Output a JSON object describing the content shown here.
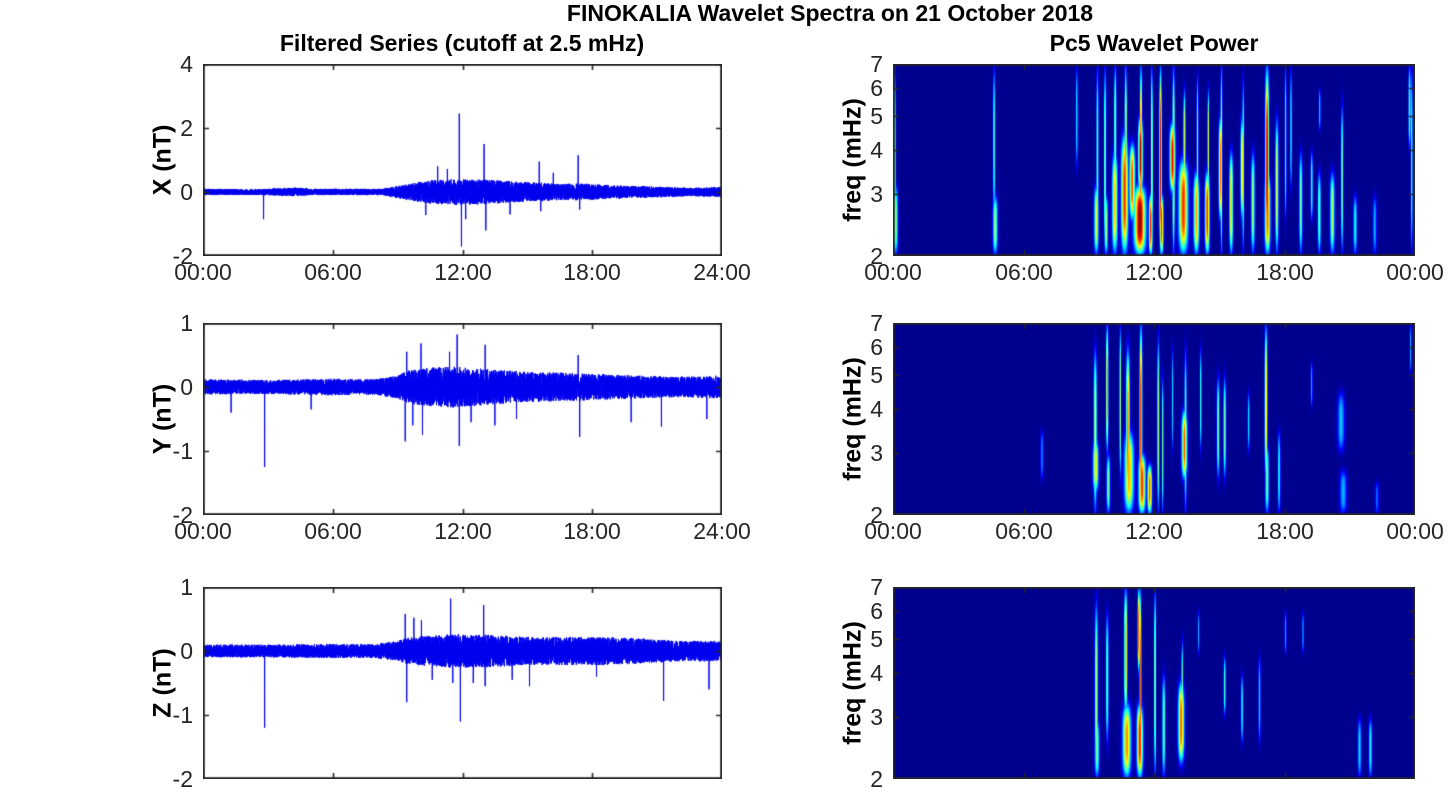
{
  "figure": {
    "suptitle": "FINOKALIA Wavelet Spectra on 21 October 2018",
    "left_title": "Filtered Series (cutoff at 2.5 mHz)",
    "right_title": "Pc5 Wavelet Power",
    "colors": {
      "trace": "#0000EE",
      "axis": "#262626",
      "background": "#FFFFFF",
      "spectrogram_background": "#00008F",
      "colormap": "jet"
    }
  },
  "chart_data": [
    {
      "type": "line",
      "name": "X filtered series",
      "ylabel": "X (nT)",
      "ylim": [
        -2,
        4
      ],
      "yticks": [
        4,
        2,
        0,
        -2
      ],
      "ytick_labels": [
        "4",
        "2",
        "0",
        "-2"
      ],
      "xlim_hours": [
        0,
        24
      ],
      "xticks_hours": [
        0,
        6,
        12,
        18,
        24
      ],
      "xtick_labels": [
        "00:00",
        "06:00",
        "12:00",
        "18:00",
        "24:00"
      ],
      "line_color": "#0000EE",
      "noise_envelope": [
        [
          0,
          0.1
        ],
        [
          2.5,
          0.09
        ],
        [
          4.4,
          0.14
        ],
        [
          5,
          0.1
        ],
        [
          8.3,
          0.1
        ],
        [
          9,
          0.2
        ],
        [
          9.8,
          0.3
        ],
        [
          10.5,
          0.36
        ],
        [
          11.5,
          0.4
        ],
        [
          12.5,
          0.4
        ],
        [
          13.5,
          0.37
        ],
        [
          14.5,
          0.32
        ],
        [
          15.5,
          0.3
        ],
        [
          16.5,
          0.25
        ],
        [
          17.5,
          0.27
        ],
        [
          19,
          0.21
        ],
        [
          21,
          0.17
        ],
        [
          22.5,
          0.13
        ],
        [
          24,
          0.16
        ]
      ],
      "spikes": [
        [
          2.8,
          -0.85
        ],
        [
          10.3,
          -0.72
        ],
        [
          10.85,
          0.8
        ],
        [
          11.3,
          0.72
        ],
        [
          11.85,
          2.45
        ],
        [
          11.95,
          -1.7
        ],
        [
          12.15,
          -0.85
        ],
        [
          13.0,
          1.5
        ],
        [
          13.08,
          -1.2
        ],
        [
          14.2,
          -0.7
        ],
        [
          15.55,
          0.95
        ],
        [
          15.62,
          -0.6
        ],
        [
          16.2,
          0.6
        ],
        [
          17.35,
          1.15
        ],
        [
          17.42,
          -0.55
        ]
      ]
    },
    {
      "type": "line",
      "name": "Y filtered series",
      "ylabel": "Y (nT)",
      "ylim": [
        -2,
        1
      ],
      "yticks": [
        1,
        0,
        -1,
        -2
      ],
      "ytick_labels": [
        "1",
        "0",
        "-1",
        "-2"
      ],
      "xlim_hours": [
        0,
        24
      ],
      "xticks_hours": [
        0,
        6,
        12,
        18,
        24
      ],
      "xtick_labels": [
        "00:00",
        "06:00",
        "12:00",
        "18:00",
        "24:00"
      ],
      "line_color": "#0000EE",
      "noise_envelope": [
        [
          0,
          0.12
        ],
        [
          3,
          0.11
        ],
        [
          6,
          0.13
        ],
        [
          8,
          0.12
        ],
        [
          9,
          0.18
        ],
        [
          9.5,
          0.26
        ],
        [
          10.5,
          0.3
        ],
        [
          11.5,
          0.32
        ],
        [
          12.5,
          0.3
        ],
        [
          13.5,
          0.27
        ],
        [
          15,
          0.24
        ],
        [
          17,
          0.22
        ],
        [
          18.5,
          0.2
        ],
        [
          20,
          0.18
        ],
        [
          22,
          0.16
        ],
        [
          24,
          0.18
        ]
      ],
      "spikes": [
        [
          1.3,
          -0.4
        ],
        [
          2.85,
          -1.25
        ],
        [
          5.0,
          -0.35
        ],
        [
          9.35,
          -0.85
        ],
        [
          9.42,
          0.55
        ],
        [
          9.7,
          -0.6
        ],
        [
          10.08,
          0.68
        ],
        [
          10.15,
          -0.75
        ],
        [
          11.4,
          0.55
        ],
        [
          11.75,
          0.82
        ],
        [
          11.85,
          -0.92
        ],
        [
          12.4,
          -0.55
        ],
        [
          13.05,
          0.66
        ],
        [
          13.5,
          -0.6
        ],
        [
          14.5,
          -0.5
        ],
        [
          17.35,
          0.5
        ],
        [
          17.42,
          -0.78
        ],
        [
          19.8,
          -0.55
        ],
        [
          21.2,
          -0.62
        ],
        [
          23.3,
          -0.5
        ]
      ]
    },
    {
      "type": "line",
      "name": "Z filtered series",
      "ylabel": "Z (nT)",
      "ylim": [
        -2,
        1
      ],
      "yticks": [
        1,
        0,
        -1,
        -2
      ],
      "ytick_labels": [
        "1",
        "0",
        "-1",
        "-2"
      ],
      "xlim_hours": [
        0,
        24
      ],
      "xticks_hours": [
        0,
        6,
        12,
        18,
        24
      ],
      "xtick_labels": [],
      "line_color": "#0000EE",
      "noise_envelope": [
        [
          0,
          0.1
        ],
        [
          3,
          0.1
        ],
        [
          6,
          0.11
        ],
        [
          8,
          0.11
        ],
        [
          9,
          0.16
        ],
        [
          9.5,
          0.21
        ],
        [
          10.5,
          0.24
        ],
        [
          11.5,
          0.26
        ],
        [
          12.5,
          0.26
        ],
        [
          13.5,
          0.25
        ],
        [
          15,
          0.22
        ],
        [
          17,
          0.22
        ],
        [
          18.5,
          0.22
        ],
        [
          20,
          0.2
        ],
        [
          22,
          0.16
        ],
        [
          24,
          0.16
        ]
      ],
      "spikes": [
        [
          2.85,
          -1.2
        ],
        [
          9.35,
          0.58
        ],
        [
          9.42,
          -0.8
        ],
        [
          9.75,
          0.52
        ],
        [
          10.1,
          0.48
        ],
        [
          10.6,
          -0.45
        ],
        [
          11.45,
          0.82
        ],
        [
          11.55,
          -0.5
        ],
        [
          11.9,
          -1.1
        ],
        [
          12.5,
          -0.5
        ],
        [
          12.98,
          0.72
        ],
        [
          13.05,
          -0.55
        ],
        [
          14.3,
          -0.45
        ],
        [
          15.1,
          -0.55
        ],
        [
          18.2,
          -0.4
        ],
        [
          21.3,
          -0.78
        ],
        [
          23.4,
          -0.6
        ]
      ]
    },
    {
      "type": "heatmap",
      "name": "X Pc5 wavelet power",
      "ylabel": "freq (mHz)",
      "yscale": "log",
      "ylim": [
        2,
        7
      ],
      "yticks": [
        7,
        6,
        5,
        4,
        3,
        2
      ],
      "ytick_labels": [
        "7",
        "6",
        "5",
        "4",
        "3",
        "2"
      ],
      "xlim_hours": [
        0,
        24
      ],
      "xticks_hours": [
        0,
        6,
        12,
        18,
        24
      ],
      "xtick_labels": [
        "00:00",
        "06:00",
        "12:00",
        "18:00",
        "00:00"
      ],
      "colormap": "jet",
      "events": [
        [
          0.08,
          0.05,
          2,
          7,
          0.5
        ],
        [
          0.12,
          0.1,
          2,
          3.2,
          0.55
        ],
        [
          4.65,
          0.05,
          2.5,
          7,
          0.45
        ],
        [
          4.7,
          0.1,
          2,
          3,
          0.55
        ],
        [
          8.45,
          0.05,
          3.5,
          7,
          0.35
        ],
        [
          9.35,
          0.1,
          2,
          3.2,
          0.6
        ],
        [
          9.4,
          0.05,
          2,
          7,
          0.5
        ],
        [
          9.75,
          0.05,
          2,
          7,
          0.55
        ],
        [
          9.8,
          0.08,
          2,
          3,
          0.55
        ],
        [
          10.2,
          0.12,
          2,
          4,
          0.7
        ],
        [
          10.22,
          0.05,
          3,
          7,
          0.6
        ],
        [
          10.65,
          0.15,
          2,
          4.5,
          0.85
        ],
        [
          10.7,
          0.05,
          2,
          7,
          0.75
        ],
        [
          11.0,
          0.12,
          2.5,
          4.2,
          0.82
        ],
        [
          11.35,
          0.25,
          2,
          3.2,
          1.0
        ],
        [
          11.38,
          0.1,
          3,
          5,
          0.95
        ],
        [
          11.4,
          0.05,
          2,
          7,
          0.9
        ],
        [
          11.85,
          0.08,
          2,
          3,
          0.88
        ],
        [
          11.9,
          0.04,
          2,
          7,
          0.7
        ],
        [
          12.3,
          0.05,
          2,
          7,
          0.9
        ],
        [
          12.35,
          0.08,
          2,
          3,
          0.85
        ],
        [
          12.85,
          0.12,
          3,
          4.8,
          0.9
        ],
        [
          12.9,
          0.05,
          2,
          7,
          0.7
        ],
        [
          13.35,
          0.2,
          2,
          3.8,
          0.85
        ],
        [
          13.4,
          0.05,
          3,
          6,
          0.6
        ],
        [
          13.95,
          0.12,
          2,
          3.5,
          0.75
        ],
        [
          14.0,
          0.04,
          2.5,
          6.5,
          0.55
        ],
        [
          14.45,
          0.1,
          2,
          3.5,
          0.85
        ],
        [
          14.5,
          0.04,
          3,
          6,
          0.6
        ],
        [
          15.05,
          0.07,
          2.5,
          5,
          0.8
        ],
        [
          15.1,
          0.04,
          2,
          7,
          0.65
        ],
        [
          15.55,
          0.08,
          2,
          4,
          0.7
        ],
        [
          16.05,
          0.07,
          2.5,
          5,
          0.68
        ],
        [
          16.1,
          0.04,
          2,
          6.5,
          0.5
        ],
        [
          16.55,
          0.08,
          2,
          4,
          0.55
        ],
        [
          17.2,
          0.08,
          2,
          7,
          0.95
        ],
        [
          17.22,
          0.12,
          2,
          3.5,
          0.8
        ],
        [
          17.65,
          0.07,
          2,
          5,
          0.6
        ],
        [
          18.05,
          0.04,
          2.5,
          7,
          0.45
        ],
        [
          18.3,
          0.04,
          3,
          7,
          0.4
        ],
        [
          18.75,
          0.07,
          2,
          4,
          0.5
        ],
        [
          19.25,
          0.05,
          2.5,
          4,
          0.45
        ],
        [
          19.6,
          0.07,
          2,
          3.5,
          0.5
        ],
        [
          19.62,
          0.04,
          4.5,
          6,
          0.35
        ],
        [
          20.2,
          0.1,
          2,
          3.5,
          0.55
        ],
        [
          20.65,
          0.05,
          2,
          5.5,
          0.5
        ],
        [
          21.25,
          0.08,
          2,
          3,
          0.4
        ],
        [
          22.15,
          0.08,
          2,
          3,
          0.3
        ],
        [
          23.75,
          0.05,
          4,
          7,
          0.5
        ],
        [
          23.85,
          0.04,
          2,
          7,
          0.45
        ]
      ]
    },
    {
      "type": "heatmap",
      "name": "Y Pc5 wavelet power",
      "ylabel": "freq (mHz)",
      "yscale": "log",
      "ylim": [
        2,
        7
      ],
      "yticks": [
        7,
        6,
        5,
        4,
        3,
        2
      ],
      "ytick_labels": [
        "7",
        "6",
        "5",
        "4",
        "3",
        "2"
      ],
      "xlim_hours": [
        0,
        24
      ],
      "xticks_hours": [
        0,
        6,
        12,
        18,
        24
      ],
      "xtick_labels": [
        "00:00",
        "06:00",
        "12:00",
        "18:00",
        "00:00"
      ],
      "colormap": "jet",
      "events": [
        [
          6.85,
          0.07,
          2.5,
          3.5,
          0.25
        ],
        [
          9.3,
          0.07,
          2,
          6,
          0.6
        ],
        [
          9.32,
          0.12,
          2.3,
          3.3,
          0.65
        ],
        [
          9.85,
          0.05,
          3,
          7,
          0.78
        ],
        [
          9.9,
          0.08,
          2,
          3,
          0.5
        ],
        [
          10.45,
          0.04,
          2.5,
          7,
          0.55
        ],
        [
          10.8,
          0.08,
          2,
          6,
          0.8
        ],
        [
          10.85,
          0.2,
          2,
          3.5,
          0.72
        ],
        [
          11.4,
          0.06,
          2,
          7,
          0.9
        ],
        [
          11.45,
          0.15,
          2,
          3,
          0.85
        ],
        [
          11.8,
          0.1,
          2,
          2.8,
          0.8
        ],
        [
          12.2,
          0.05,
          2,
          6.5,
          0.55
        ],
        [
          12.4,
          0.04,
          2,
          5,
          0.5
        ],
        [
          12.85,
          0.04,
          3,
          6,
          0.35
        ],
        [
          13.4,
          0.12,
          2.5,
          4,
          0.8
        ],
        [
          13.45,
          0.05,
          2,
          6,
          0.5
        ],
        [
          14.15,
          0.04,
          3,
          6,
          0.45
        ],
        [
          14.95,
          0.06,
          2.5,
          5,
          0.5
        ],
        [
          15.25,
          0.06,
          2.5,
          5,
          0.5
        ],
        [
          16.35,
          0.05,
          3,
          4.5,
          0.35
        ],
        [
          17.15,
          0.06,
          2.5,
          7,
          0.72
        ],
        [
          17.2,
          0.08,
          2,
          3.2,
          0.5
        ],
        [
          17.75,
          0.06,
          2,
          3.5,
          0.4
        ],
        [
          19.25,
          0.04,
          4,
          5.5,
          0.3
        ],
        [
          20.6,
          0.15,
          3,
          4.5,
          0.32
        ],
        [
          20.7,
          0.15,
          2,
          2.7,
          0.3
        ],
        [
          22.25,
          0.08,
          2,
          2.5,
          0.22
        ],
        [
          23.8,
          0.04,
          5,
          7,
          0.3
        ]
      ]
    },
    {
      "type": "heatmap",
      "name": "Z Pc5 wavelet power",
      "ylabel": "freq (mHz)",
      "yscale": "log",
      "ylim": [
        2,
        7
      ],
      "yticks": [
        7,
        6,
        5,
        4,
        3,
        2
      ],
      "ytick_labels": [
        "7",
        "6",
        "5",
        "4",
        "3",
        "2"
      ],
      "xlim_hours": [
        0,
        24
      ],
      "xticks_hours": [
        0,
        6,
        12,
        18,
        24
      ],
      "xtick_labels": [],
      "colormap": "jet",
      "events": [
        [
          9.35,
          0.07,
          2,
          6.5,
          0.55
        ],
        [
          9.38,
          0.1,
          2,
          3,
          0.5
        ],
        [
          9.85,
          0.06,
          2.5,
          6,
          0.5
        ],
        [
          10.7,
          0.07,
          3,
          7,
          0.75
        ],
        [
          10.75,
          0.18,
          2,
          3.3,
          0.75
        ],
        [
          11.3,
          0.05,
          4,
          7,
          0.85
        ],
        [
          11.35,
          0.13,
          2,
          3.3,
          0.88
        ],
        [
          11.38,
          0.04,
          2,
          7,
          0.8
        ],
        [
          12.05,
          0.04,
          2,
          7,
          0.65
        ],
        [
          12.45,
          0.07,
          2,
          4,
          0.5
        ],
        [
          13.25,
          0.13,
          2.2,
          3.8,
          0.8
        ],
        [
          13.3,
          0.04,
          2.5,
          5,
          0.5
        ],
        [
          14.05,
          0.04,
          4.5,
          6,
          0.3
        ],
        [
          15.25,
          0.05,
          3,
          4.5,
          0.45
        ],
        [
          16.05,
          0.05,
          2.5,
          4,
          0.4
        ],
        [
          16.85,
          0.05,
          2.5,
          4.5,
          0.35
        ],
        [
          18.05,
          0.04,
          4.5,
          6,
          0.3
        ],
        [
          18.85,
          0.04,
          4.5,
          6,
          0.3
        ],
        [
          21.45,
          0.08,
          2,
          3,
          0.35
        ],
        [
          21.95,
          0.07,
          2,
          3,
          0.4
        ]
      ]
    }
  ]
}
